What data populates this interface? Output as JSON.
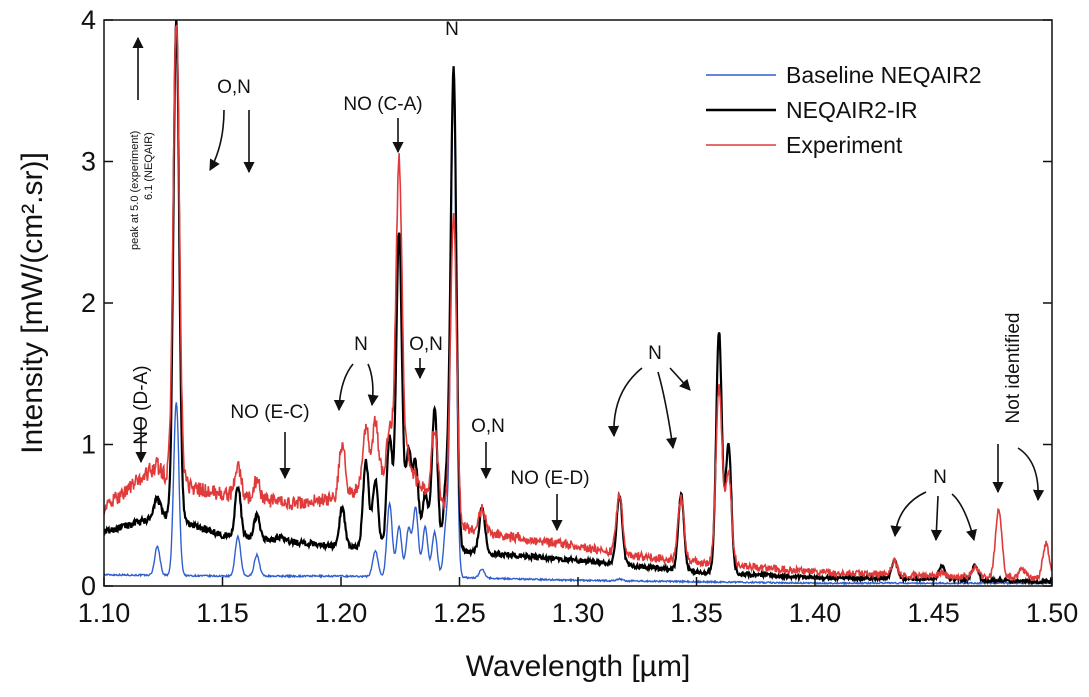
{
  "chart_data": {
    "type": "line",
    "title": "",
    "xlabel": "Wavelength [µm]",
    "ylabel": "Intensity [mW/(cm².sr)]",
    "xlim": [
      1.1,
      1.5
    ],
    "ylim": [
      0,
      4
    ],
    "x_ticks": [
      1.1,
      1.15,
      1.2,
      1.25,
      1.3,
      1.35,
      1.4,
      1.45,
      1.5
    ],
    "x_tick_labels": [
      "1.10",
      "1.15",
      "1.20",
      "1.25",
      "1.30",
      "1.35",
      "1.40",
      "1.45",
      "1.50"
    ],
    "y_ticks": [
      0,
      1,
      2,
      3,
      4
    ],
    "y_tick_labels": [
      "0",
      "1",
      "2",
      "3",
      "4"
    ],
    "grid": false,
    "legend_position": "top-right",
    "series": [
      {
        "name": "Baseline NEQAIR2",
        "color": "#2f5fcf",
        "baseline": [
          [
            1.1,
            0.08
          ],
          [
            1.15,
            0.07
          ],
          [
            1.2,
            0.07
          ],
          [
            1.25,
            0.06
          ],
          [
            1.3,
            0.04
          ],
          [
            1.35,
            0.03
          ],
          [
            1.4,
            0.02
          ],
          [
            1.45,
            0.02
          ],
          [
            1.5,
            0.02
          ]
        ],
        "peaks": [
          [
            1.1225,
            0.28
          ],
          [
            1.1305,
            1.3
          ],
          [
            1.1565,
            0.35
          ],
          [
            1.1645,
            0.22
          ],
          [
            1.2145,
            0.25
          ],
          [
            1.2205,
            0.58
          ],
          [
            1.2245,
            0.42
          ],
          [
            1.2285,
            0.4
          ],
          [
            1.2315,
            0.55
          ],
          [
            1.2355,
            0.42
          ],
          [
            1.2395,
            0.38
          ],
          [
            1.2445,
            0.45
          ],
          [
            1.2475,
            3.55
          ],
          [
            1.2595,
            0.12
          ],
          [
            1.3175,
            0.05
          ]
        ]
      },
      {
        "name": "NEQAIR2-IR",
        "color": "#000000",
        "baseline": [
          [
            1.1,
            0.38
          ],
          [
            1.125,
            0.5
          ],
          [
            1.15,
            0.36
          ],
          [
            1.2,
            0.28
          ],
          [
            1.25,
            0.25
          ],
          [
            1.3,
            0.18
          ],
          [
            1.35,
            0.1
          ],
          [
            1.4,
            0.06
          ],
          [
            1.45,
            0.05
          ],
          [
            1.5,
            0.03
          ]
        ],
        "peaks": [
          [
            1.1225,
            0.62
          ],
          [
            1.1305,
            4.0
          ],
          [
            1.1565,
            0.7
          ],
          [
            1.1645,
            0.5
          ],
          [
            1.1745,
            0.35
          ],
          [
            1.2005,
            0.55
          ],
          [
            1.2105,
            0.88
          ],
          [
            1.2145,
            0.75
          ],
          [
            1.2205,
            1.05
          ],
          [
            1.2245,
            2.5
          ],
          [
            1.2285,
            0.95
          ],
          [
            1.2315,
            0.85
          ],
          [
            1.2355,
            0.65
          ],
          [
            1.2395,
            1.25
          ],
          [
            1.2445,
            0.75
          ],
          [
            1.2475,
            3.65
          ],
          [
            1.2595,
            0.55
          ],
          [
            1.3175,
            0.65
          ],
          [
            1.3435,
            0.65
          ],
          [
            1.3595,
            1.8
          ],
          [
            1.3635,
            1.0
          ],
          [
            1.4335,
            0.18
          ],
          [
            1.4535,
            0.14
          ],
          [
            1.4675,
            0.15
          ]
        ]
      },
      {
        "name": "Experiment",
        "color": "#e03a3a",
        "baseline": [
          [
            1.1,
            0.55
          ],
          [
            1.12,
            0.82
          ],
          [
            1.14,
            0.68
          ],
          [
            1.16,
            0.62
          ],
          [
            1.18,
            0.58
          ],
          [
            1.2,
            0.62
          ],
          [
            1.22,
            0.78
          ],
          [
            1.24,
            0.65
          ],
          [
            1.25,
            0.42
          ],
          [
            1.27,
            0.35
          ],
          [
            1.3,
            0.28
          ],
          [
            1.32,
            0.22
          ],
          [
            1.35,
            0.17
          ],
          [
            1.4,
            0.1
          ],
          [
            1.45,
            0.07
          ],
          [
            1.5,
            0.06
          ]
        ],
        "peaks": [
          [
            1.1225,
            0.85
          ],
          [
            1.1305,
            4.0
          ],
          [
            1.1565,
            0.85
          ],
          [
            1.1645,
            0.75
          ],
          [
            1.2005,
            1.0
          ],
          [
            1.2105,
            1.1
          ],
          [
            1.2145,
            1.15
          ],
          [
            1.2205,
            1.1
          ],
          [
            1.2245,
            3.0
          ],
          [
            1.2285,
            0.9
          ],
          [
            1.2315,
            0.75
          ],
          [
            1.2395,
            1.1
          ],
          [
            1.2475,
            2.6
          ],
          [
            1.2595,
            0.55
          ],
          [
            1.3175,
            0.65
          ],
          [
            1.3435,
            0.62
          ],
          [
            1.3595,
            1.4
          ],
          [
            1.3635,
            0.8
          ],
          [
            1.4335,
            0.18
          ],
          [
            1.4535,
            0.1
          ],
          [
            1.4675,
            0.13
          ],
          [
            1.4775,
            0.55
          ],
          [
            1.4875,
            0.12
          ],
          [
            1.4975,
            0.3
          ]
        ]
      }
    ],
    "annotations": [
      {
        "text": "NO (D-A)",
        "x": 1.113,
        "y": 0.85,
        "rotated": true
      },
      {
        "text": "O,N",
        "x": 1.163,
        "y": 3.5
      },
      {
        "text": "NO (C-A)",
        "x": 1.223,
        "y": 3.3
      },
      {
        "text": "N",
        "x": 1.247,
        "y": 3.95
      },
      {
        "text": "NO (E-C)",
        "x": 1.178,
        "y": 0.85
      },
      {
        "text": "N",
        "x": 1.206,
        "y": 1.32
      },
      {
        "text": "O,N",
        "x": 1.233,
        "y": 1.32
      },
      {
        "text": "O,N",
        "x": 1.264,
        "y": 0.88
      },
      {
        "text": "NO (E-D)",
        "x": 1.292,
        "y": 0.58
      },
      {
        "text": "N",
        "x": 1.337,
        "y": 1.32
      },
      {
        "text": "N",
        "x": 1.453,
        "y": 0.55
      },
      {
        "text": "Not identified",
        "x": 1.479,
        "y": 1.0,
        "rotated": true
      }
    ],
    "peak_note_line1": "peak at 5.0 (experiment)",
    "peak_note_line2": "6.1 (NEQAIR)"
  }
}
